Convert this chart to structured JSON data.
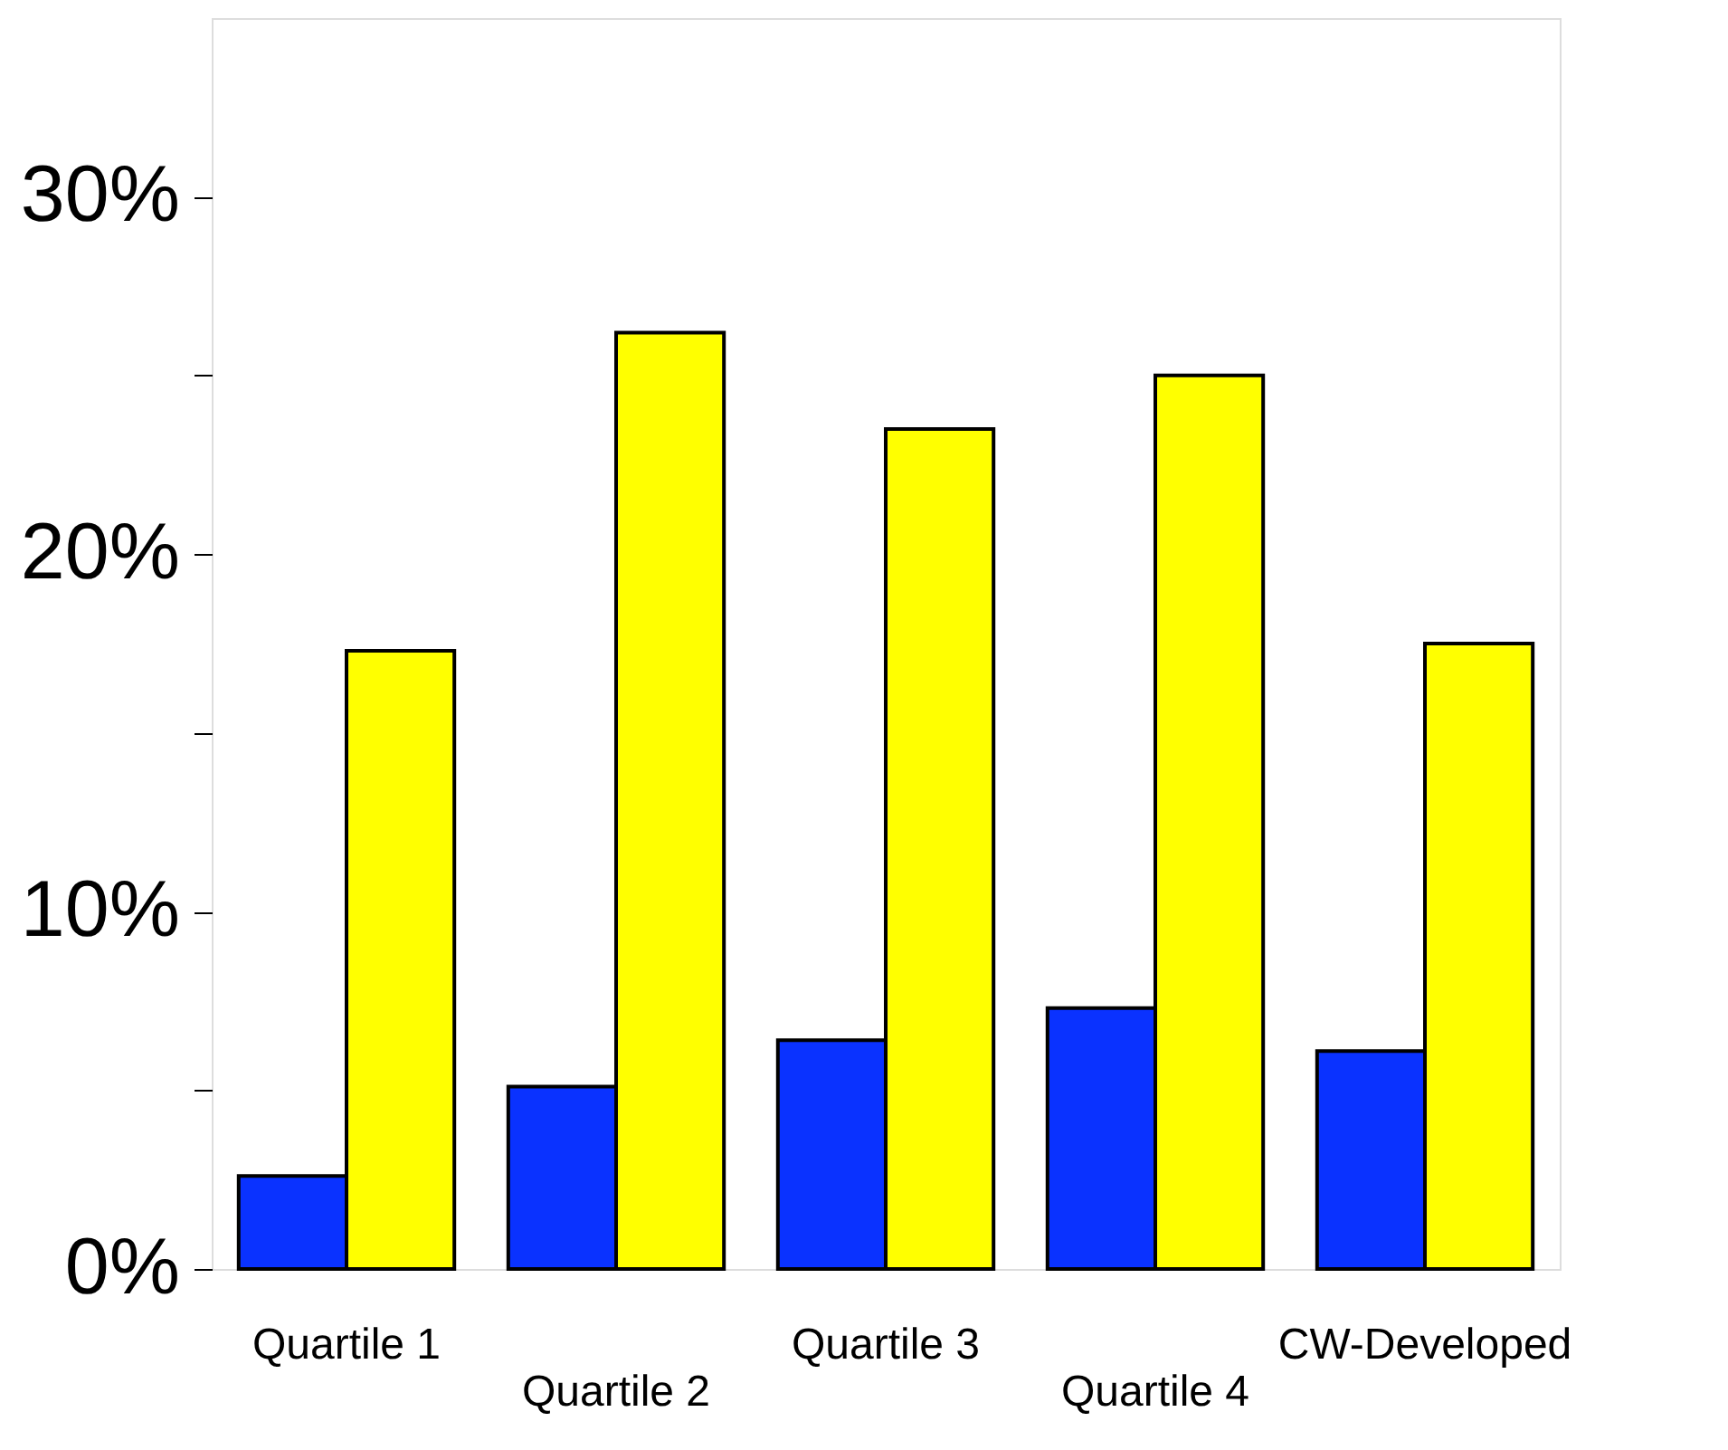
{
  "chart_data": {
    "type": "bar",
    "categories": [
      "Quartile 1",
      "Quartile 2",
      "Quartile 3",
      "Quartile 4",
      "CW-Developed"
    ],
    "series": [
      {
        "color": "#0a32ff",
        "values": [
          2.6,
          5.1,
          6.4,
          7.3,
          6.1
        ]
      },
      {
        "color": "#ffff00",
        "values": [
          17.3,
          26.2,
          23.5,
          25.0,
          17.5
        ]
      }
    ],
    "ylim": [
      0,
      35
    ],
    "yticks": [
      {
        "value": 0,
        "label": "0%"
      },
      {
        "value": 5,
        "label": null
      },
      {
        "value": 10,
        "label": "10%"
      },
      {
        "value": 15,
        "label": null
      },
      {
        "value": 20,
        "label": "20%"
      },
      {
        "value": 25,
        "label": null
      },
      {
        "value": 30,
        "label": "30%"
      }
    ],
    "grid": false,
    "legend": false
  }
}
